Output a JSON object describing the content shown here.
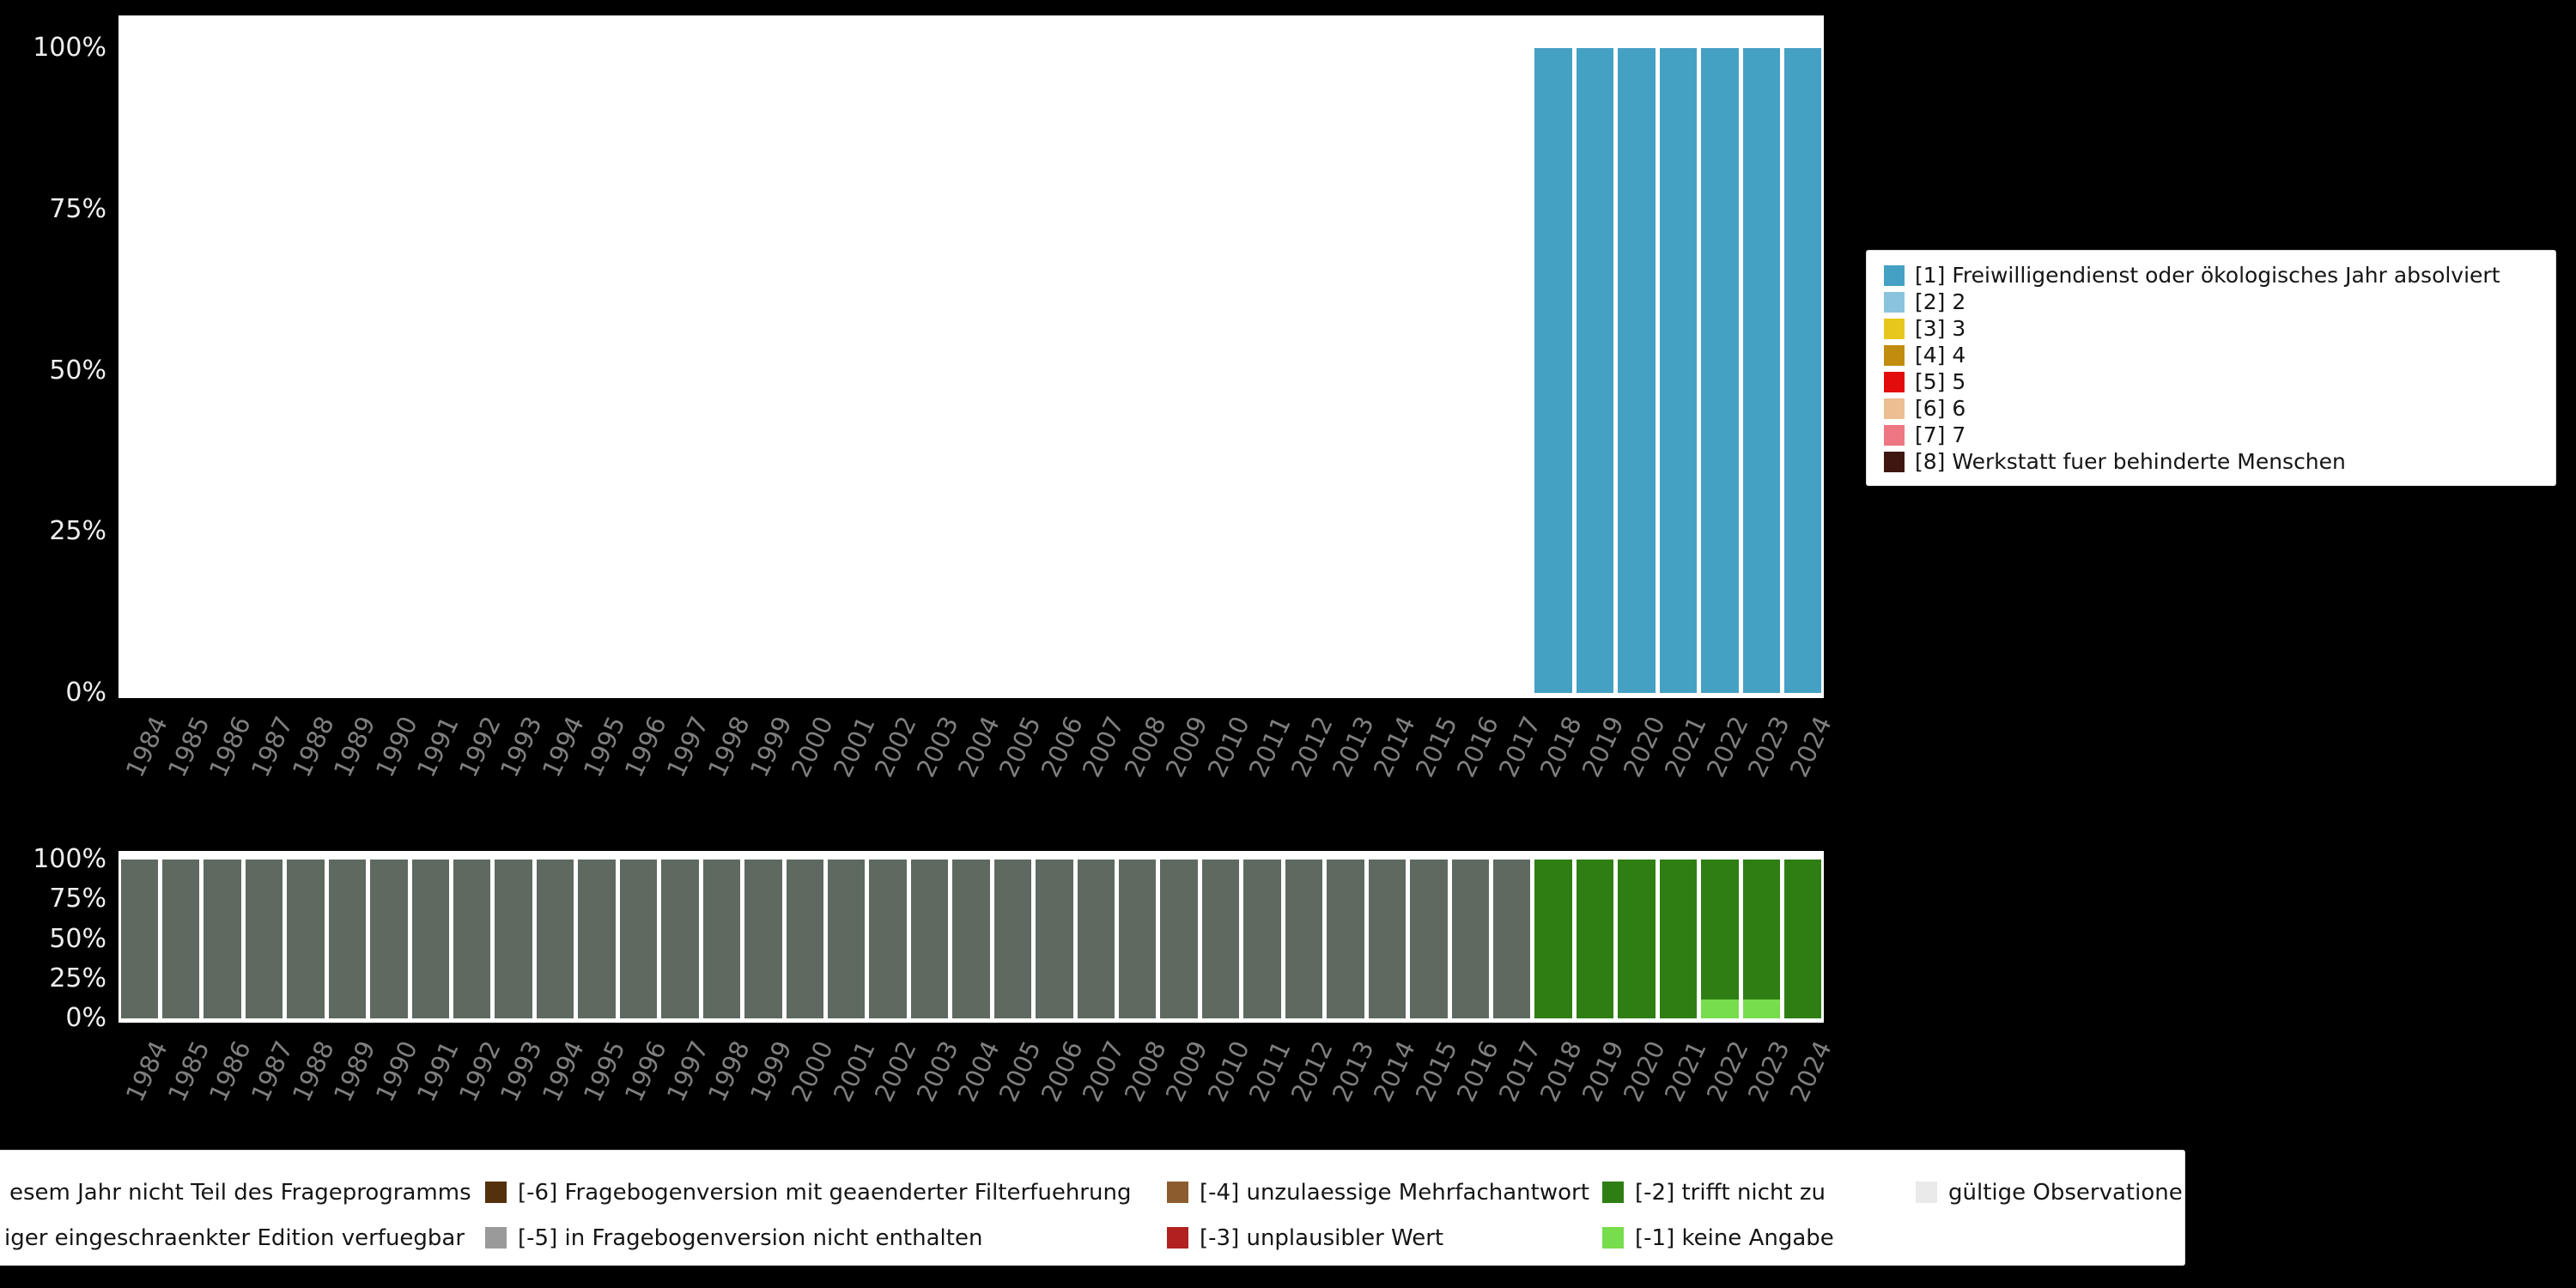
{
  "style": {
    "page_background": "#000000",
    "plot_background": "#ffffff",
    "y_tick_color": "#efefef",
    "x_tick_color": "#7f7f7f",
    "legend_background": "#ffffff"
  },
  "chart_data": [
    {
      "type": "bar",
      "subtype": "stacked_percent",
      "title": "",
      "xlabel": "",
      "ylabel": "",
      "ylim": [
        0,
        100
      ],
      "grid": false,
      "legend_position": "right",
      "x": [
        "1984",
        "1985",
        "1986",
        "1987",
        "1988",
        "1989",
        "1990",
        "1991",
        "1992",
        "1993",
        "1994",
        "1995",
        "1996",
        "1997",
        "1998",
        "1999",
        "2000",
        "2001",
        "2002",
        "2003",
        "2004",
        "2005",
        "2006",
        "2007",
        "2008",
        "2009",
        "2010",
        "2011",
        "2012",
        "2013",
        "2014",
        "2015",
        "2016",
        "2017",
        "2018",
        "2019",
        "2020",
        "2021",
        "2022",
        "2023",
        "2024"
      ],
      "yticks": [
        {
          "label": "100%",
          "value": 100
        },
        {
          "label": "75%",
          "value": 75
        },
        {
          "label": "50%",
          "value": 50
        },
        {
          "label": "25%",
          "value": 25
        },
        {
          "label": "0%",
          "value": 0
        }
      ],
      "series": [
        {
          "name": "[1] Freiwilligendienst oder ökologisches Jahr absolviert",
          "color": "#45A1C4",
          "values": [
            0,
            0,
            0,
            0,
            0,
            0,
            0,
            0,
            0,
            0,
            0,
            0,
            0,
            0,
            0,
            0,
            0,
            0,
            0,
            0,
            0,
            0,
            0,
            0,
            0,
            0,
            0,
            0,
            0,
            0,
            0,
            0,
            0,
            0,
            100,
            100,
            100,
            100,
            100,
            100,
            100
          ]
        }
      ]
    },
    {
      "type": "bar",
      "subtype": "stacked_percent",
      "title": "",
      "xlabel": "",
      "ylabel": "",
      "ylim": [
        0,
        100
      ],
      "grid": false,
      "legend_position": "bottom",
      "x": [
        "1984",
        "1985",
        "1986",
        "1987",
        "1988",
        "1989",
        "1990",
        "1991",
        "1992",
        "1993",
        "1994",
        "1995",
        "1996",
        "1997",
        "1998",
        "1999",
        "2000",
        "2001",
        "2002",
        "2003",
        "2004",
        "2005",
        "2006",
        "2007",
        "2008",
        "2009",
        "2010",
        "2011",
        "2012",
        "2013",
        "2014",
        "2015",
        "2016",
        "2017",
        "2018",
        "2019",
        "2020",
        "2021",
        "2022",
        "2023",
        "2024"
      ],
      "yticks": [
        {
          "label": "100%",
          "value": 100
        },
        {
          "label": "75%",
          "value": 75
        },
        {
          "label": "50%",
          "value": 50
        },
        {
          "label": "25%",
          "value": 25
        },
        {
          "label": "0%",
          "value": 0
        }
      ],
      "series": [
        {
          "name": "[-1] keine Angabe",
          "color": "#77DD4C",
          "values": [
            0,
            0,
            0,
            0,
            0,
            0,
            0,
            0,
            0,
            0,
            0,
            0,
            0,
            0,
            0,
            0,
            0,
            0,
            0,
            0,
            0,
            0,
            0,
            0,
            0,
            0,
            0,
            0,
            0,
            0,
            0,
            0,
            0,
            0,
            0,
            0,
            0,
            0,
            12,
            12,
            0
          ]
        },
        {
          "name": "[-2] trifft nicht zu",
          "color": "#2E7E14",
          "values": [
            0,
            0,
            0,
            0,
            0,
            0,
            0,
            0,
            0,
            0,
            0,
            0,
            0,
            0,
            0,
            0,
            0,
            0,
            0,
            0,
            0,
            0,
            0,
            0,
            0,
            0,
            0,
            0,
            0,
            0,
            0,
            0,
            0,
            0,
            100,
            100,
            100,
            100,
            88,
            88,
            100
          ]
        },
        {
          "name": "nicht Teil des Frageprogramms",
          "color": "#5E6A60",
          "values": [
            100,
            100,
            100,
            100,
            100,
            100,
            100,
            100,
            100,
            100,
            100,
            100,
            100,
            100,
            100,
            100,
            100,
            100,
            100,
            100,
            100,
            100,
            100,
            100,
            100,
            100,
            100,
            100,
            100,
            100,
            100,
            100,
            100,
            100,
            0,
            0,
            0,
            0,
            0,
            0,
            0
          ]
        }
      ]
    }
  ],
  "legend_top": {
    "items": [
      {
        "label": "[1] Freiwilligendienst oder ökologisches Jahr absolviert",
        "color": "#45A1C4"
      },
      {
        "label": "[2] 2",
        "color": "#8AC4DC"
      },
      {
        "label": "[3] 3",
        "color": "#E7C71C"
      },
      {
        "label": "[4] 4",
        "color": "#C28D0E"
      },
      {
        "label": "[5] 5",
        "color": "#E30B0B"
      },
      {
        "label": "[6] 6",
        "color": "#EDBE92"
      },
      {
        "label": "[7] 7",
        "color": "#ED7783"
      },
      {
        "label": "[8] Werkstatt fuer behinderte Menschen",
        "color": "#3F1710"
      }
    ]
  },
  "legend_bottom": {
    "items": [
      {
        "row": 0,
        "col": 0,
        "label": "esem Jahr nicht Teil des Frageprogramms",
        "color": null
      },
      {
        "row": 0,
        "col": 1,
        "label": "[-6] Fragebogenversion mit geaenderter Filterfuehrung",
        "color": "#54300C"
      },
      {
        "row": 0,
        "col": 2,
        "label": "[-4] unzulaessige Mehrfachantwort",
        "color": "#8C5C2E"
      },
      {
        "row": 0,
        "col": 3,
        "label": "[-2] trifft nicht zu",
        "color": "#2E7E14"
      },
      {
        "row": 0,
        "col": 4,
        "label": "gültige Observationen",
        "color": "#EAEAEA"
      },
      {
        "row": 1,
        "col": 0,
        "label": "iger eingeschraenkter Edition verfuegbar",
        "color": null
      },
      {
        "row": 1,
        "col": 1,
        "label": "[-5] in Fragebogenversion nicht enthalten",
        "color": "#9A9A9A"
      },
      {
        "row": 1,
        "col": 2,
        "label": "[-3] unplausibler Wert",
        "color": "#B22020"
      },
      {
        "row": 1,
        "col": 3,
        "label": "[-1] keine Angabe",
        "color": "#77DD4C"
      }
    ]
  }
}
